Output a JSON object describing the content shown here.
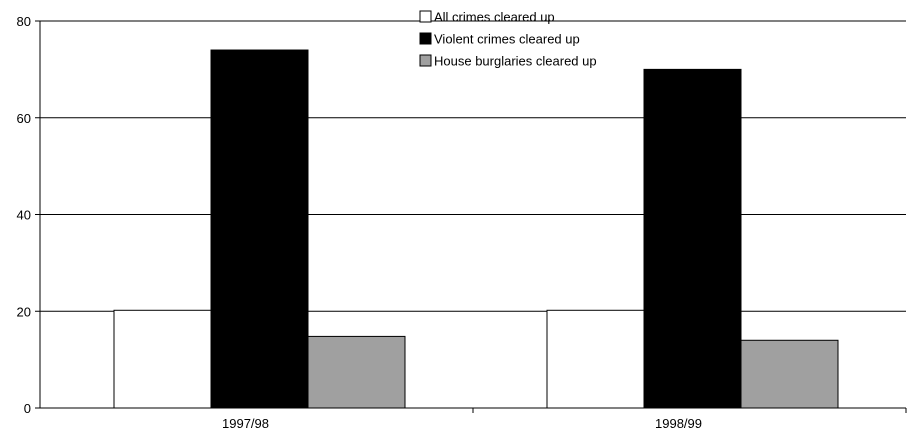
{
  "chart_data": {
    "type": "bar",
    "categories": [
      "1997/98",
      "1998/99"
    ],
    "series": [
      {
        "name": "All crimes cleared up",
        "values": [
          20.2,
          20.2
        ],
        "color": "#ffffff"
      },
      {
        "name": "Violent crimes cleared up",
        "values": [
          74,
          70
        ],
        "color": "#000000"
      },
      {
        "name": "House burglaries cleared up",
        "values": [
          14.8,
          14
        ],
        "color": "#a0a0a0"
      }
    ],
    "title": "",
    "xlabel": "",
    "ylabel": "",
    "ylim": [
      0,
      80
    ],
    "yticks": [
      "0",
      "20",
      "40",
      "60",
      "80"
    ],
    "grid": true,
    "legend_position": "top-center"
  }
}
